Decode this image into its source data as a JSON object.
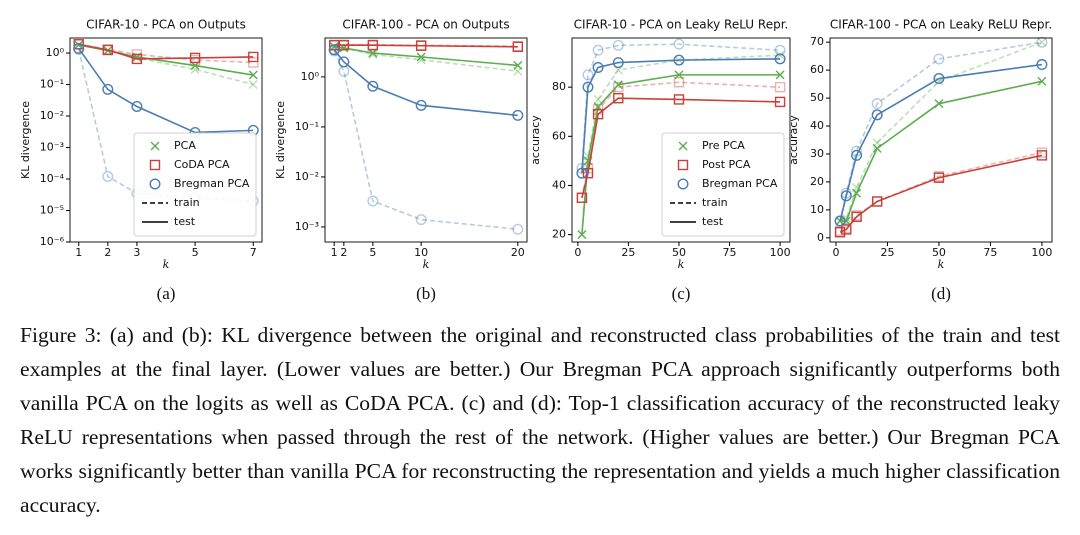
{
  "chart_data": [
    {
      "type": "line",
      "title": "CIFAR-10 - PCA on Outputs",
      "label": "(a)",
      "xlabel": "k",
      "ylabel": "KL divergence",
      "yscale": "log",
      "x": [
        1,
        2,
        3,
        5,
        7
      ],
      "xlim": [
        0.7,
        7.3
      ],
      "xticks": [
        1,
        2,
        3,
        5,
        7
      ],
      "ylim": [
        1e-06,
        3
      ],
      "yticks": [
        {
          "value": 1e-06,
          "label": "10⁻⁶"
        },
        {
          "value": 1e-05,
          "label": "10⁻⁵"
        },
        {
          "value": 0.0001,
          "label": "10⁻⁴"
        },
        {
          "value": 0.001,
          "label": "10⁻³"
        },
        {
          "value": 0.01,
          "label": "10⁻²"
        },
        {
          "value": 0.1,
          "label": "10⁻¹"
        },
        {
          "value": 1,
          "label": "10⁰"
        }
      ],
      "series": [
        {
          "name": "PCA",
          "color": "#5cad4f",
          "marker": "x",
          "train": [
            1.8,
            1.2,
            0.7,
            0.3,
            0.1
          ],
          "test": [
            1.8,
            1.2,
            0.75,
            0.4,
            0.2
          ]
        },
        {
          "name": "CoDA PCA",
          "color": "#c9403a",
          "marker": "s",
          "train": [
            1.9,
            1.3,
            0.9,
            0.6,
            0.5
          ],
          "test": [
            1.9,
            1.25,
            0.65,
            0.7,
            0.75
          ]
        },
        {
          "name": "Bregman PCA",
          "color": "#4a7db3",
          "marker": "o",
          "train": [
            1.3,
            0.00012,
            3.5e-05,
            2.5e-05,
            2e-05
          ],
          "test": [
            1.4,
            0.07,
            0.02,
            0.003,
            0.0035
          ]
        }
      ],
      "line_styles": [
        {
          "name": "train",
          "dash": "dashed"
        },
        {
          "name": "test",
          "dash": "solid"
        }
      ],
      "legend": "lower right"
    },
    {
      "type": "line",
      "title": "CIFAR-100 - PCA on Outputs",
      "label": "(b)",
      "xlabel": "k",
      "ylabel": "KL divergence",
      "yscale": "log",
      "x": [
        1,
        2,
        5,
        10,
        20
      ],
      "xlim": [
        0.05,
        20.95
      ],
      "xticks": [
        1,
        2,
        5,
        10,
        20
      ],
      "ylim": [
        0.0005,
        6
      ],
      "yticks": [
        {
          "value": 0.001,
          "label": "10⁻³"
        },
        {
          "value": 0.01,
          "label": "10⁻²"
        },
        {
          "value": 0.1,
          "label": "10⁻¹"
        },
        {
          "value": 1,
          "label": "10⁰"
        }
      ],
      "series": [
        {
          "name": "PCA",
          "color": "#5cad4f",
          "marker": "x",
          "train": [
            4,
            3.8,
            2.8,
            2.2,
            1.3
          ],
          "test": [
            4,
            3.8,
            3,
            2.5,
            1.7
          ]
        },
        {
          "name": "CoDA PCA",
          "color": "#c9403a",
          "marker": "s",
          "train": [
            4.4,
            4.4,
            4.4,
            4.3,
            4.1
          ],
          "test": [
            4.3,
            4.3,
            4.3,
            4.2,
            4.0
          ]
        },
        {
          "name": "Bregman PCA",
          "color": "#4a7db3",
          "marker": "o",
          "train": [
            3.3,
            1.3,
            0.0033,
            0.0014,
            0.0009
          ],
          "test": [
            3.5,
            2,
            0.65,
            0.27,
            0.17
          ]
        }
      ]
    },
    {
      "type": "line",
      "title": "CIFAR-10 - PCA on Leaky ReLU Repr.",
      "label": "(c)",
      "xlabel": "k",
      "ylabel": "accuracy",
      "x": [
        2,
        5,
        10,
        20,
        50,
        100
      ],
      "xlim": [
        -2.9,
        104.9
      ],
      "xticks": [
        0,
        25,
        50,
        75,
        100
      ],
      "ylim": [
        17,
        100
      ],
      "yticks": [
        20,
        40,
        60,
        80
      ],
      "series": [
        {
          "name": "Pre PCA",
          "color": "#5cad4f",
          "marker": "x",
          "train": [
            20,
            52,
            75,
            87,
            91,
            93
          ],
          "test": [
            20,
            50,
            72,
            81,
            85,
            85
          ]
        },
        {
          "name": "Post PCA",
          "color": "#c9403a",
          "marker": "s",
          "train": [
            35,
            47,
            71,
            80,
            82,
            80
          ],
          "test": [
            35,
            45,
            69,
            75.5,
            75,
            74
          ]
        },
        {
          "name": "Bregman PCA",
          "color": "#4a7db3",
          "marker": "o",
          "train": [
            47,
            85,
            95,
            97,
            97.5,
            95
          ],
          "test": [
            45,
            80,
            88,
            90,
            91,
            91.5
          ]
        }
      ],
      "line_styles": [
        {
          "name": "train",
          "dash": "dashed"
        },
        {
          "name": "test",
          "dash": "solid"
        }
      ],
      "legend": "lower right"
    },
    {
      "type": "line",
      "title": "CIFAR-100 - PCA on Leaky ReLU Repr.",
      "label": "(d)",
      "xlabel": "k",
      "ylabel": "accuracy",
      "x": [
        2,
        5,
        10,
        20,
        50,
        100
      ],
      "xlim": [
        -2.9,
        104.9
      ],
      "xticks": [
        0,
        25,
        50,
        75,
        100
      ],
      "ylim": [
        -1.5,
        71.5
      ],
      "yticks": [
        0,
        10,
        20,
        30,
        40,
        50,
        60,
        70
      ],
      "series": [
        {
          "name": "Pre PCA",
          "color": "#5cad4f",
          "marker": "x",
          "train": [
            6,
            7,
            18,
            34,
            56,
            70
          ],
          "test": [
            6,
            6,
            16,
            32,
            48,
            56
          ]
        },
        {
          "name": "Post PCA",
          "color": "#c9403a",
          "marker": "s",
          "train": [
            2.5,
            3.5,
            8,
            13,
            22,
            30.5
          ],
          "test": [
            2,
            3,
            7.5,
            13,
            21.5,
            29.5
          ]
        },
        {
          "name": "Bregman PCA",
          "color": "#4a7db3",
          "marker": "o",
          "train": [
            6,
            16,
            31,
            48,
            64,
            70
          ],
          "test": [
            6,
            15,
            29.5,
            44,
            57,
            62
          ]
        }
      ]
    }
  ],
  "caption": "Figure 3: (a) and (b): KL divergence between the original and reconstructed class probabilities of the train and test examples at the final layer. (Lower values are better.) Our Bregman PCA approach significantly outperforms both vanilla PCA on the logits as well as CoDA PCA. (c) and (d): Top-1 classification accuracy of the reconstructed leaky ReLU representations when passed through the rest of the network. (Higher values are better.) Our Bregman PCA works significantly better than vanilla PCA for reconstructing the representation and yields a much higher classification accuracy."
}
